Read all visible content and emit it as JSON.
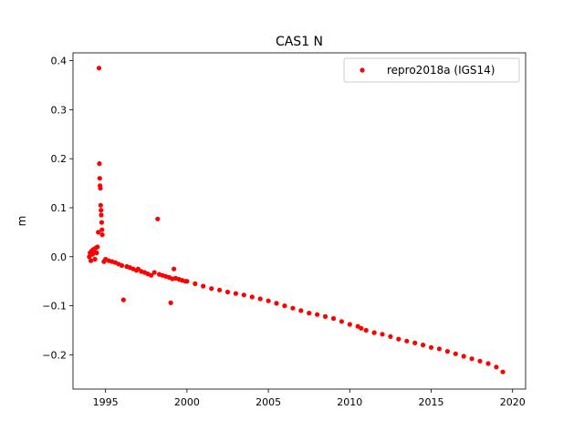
{
  "chart_data": {
    "type": "scatter",
    "title": "CAS1 N",
    "xlabel": "",
    "ylabel": "m",
    "xlim": [
      1993.0,
      2020.8
    ],
    "ylim": [
      -0.27,
      0.416
    ],
    "xticks": [
      1995,
      2000,
      2005,
      2010,
      2015,
      2020
    ],
    "xtick_labels": [
      "1995",
      "2000",
      "2005",
      "2010",
      "2015",
      "2020"
    ],
    "yticks": [
      -0.2,
      -0.1,
      0.0,
      0.1,
      0.2,
      0.3,
      0.4
    ],
    "ytick_labels": [
      "−0.2",
      "−0.1",
      "0.0",
      "0.1",
      "0.2",
      "0.3",
      "0.4"
    ],
    "grid": false,
    "legend_position": "top-right",
    "series": [
      {
        "name": "repro2018a (IGS14)",
        "color": "#ff0000",
        "marker": "circle",
        "x": [
          1994.0,
          1994.05,
          1994.1,
          1994.15,
          1994.2,
          1994.25,
          1994.3,
          1994.35,
          1994.4,
          1994.45,
          1994.5,
          1994.55,
          1994.6,
          1994.62,
          1994.64,
          1994.66,
          1994.68,
          1994.7,
          1994.72,
          1994.74,
          1994.76,
          1994.78,
          1994.8,
          1994.9,
          1995.0,
          1995.2,
          1995.4,
          1995.6,
          1995.8,
          1996.0,
          1996.1,
          1996.3,
          1996.5,
          1996.7,
          1996.9,
          1997.0,
          1997.2,
          1997.4,
          1997.6,
          1997.8,
          1998.0,
          1998.2,
          1998.3,
          1998.5,
          1998.7,
          1998.9,
          1999.0,
          1999.1,
          1999.2,
          1999.3,
          1999.5,
          1999.7,
          1999.9,
          2000.0,
          2000.5,
          2001.0,
          2001.5,
          2002.0,
          2002.5,
          2003.0,
          2003.5,
          2004.0,
          2004.5,
          2005.0,
          2005.5,
          2006.0,
          2006.5,
          2007.0,
          2007.5,
          2008.0,
          2008.5,
          2009.0,
          2009.5,
          2010.0,
          2010.5,
          2010.7,
          2011.0,
          2011.5,
          2012.0,
          2012.5,
          2013.0,
          2013.5,
          2014.0,
          2014.5,
          2015.0,
          2015.5,
          2016.0,
          2016.5,
          2017.0,
          2017.5,
          2018.0,
          2018.5,
          2019.0,
          2019.4
        ],
        "y": [
          0.0,
          0.008,
          -0.008,
          0.012,
          0.005,
          0.015,
          0.01,
          -0.005,
          0.018,
          0.008,
          0.02,
          0.05,
          0.385,
          0.19,
          0.16,
          0.145,
          0.14,
          0.105,
          0.095,
          0.085,
          0.07,
          0.055,
          0.045,
          -0.01,
          -0.005,
          -0.008,
          -0.01,
          -0.012,
          -0.015,
          -0.018,
          -0.088,
          -0.02,
          -0.022,
          -0.025,
          -0.028,
          -0.025,
          -0.03,
          -0.032,
          -0.035,
          -0.038,
          -0.032,
          0.077,
          -0.036,
          -0.038,
          -0.04,
          -0.042,
          -0.094,
          -0.045,
          -0.025,
          -0.044,
          -0.046,
          -0.048,
          -0.05,
          -0.05,
          -0.055,
          -0.06,
          -0.065,
          -0.068,
          -0.072,
          -0.075,
          -0.078,
          -0.082,
          -0.086,
          -0.09,
          -0.095,
          -0.1,
          -0.105,
          -0.11,
          -0.115,
          -0.118,
          -0.122,
          -0.126,
          -0.132,
          -0.138,
          -0.142,
          -0.146,
          -0.15,
          -0.155,
          -0.158,
          -0.163,
          -0.168,
          -0.172,
          -0.176,
          -0.18,
          -0.185,
          -0.188,
          -0.193,
          -0.198,
          -0.203,
          -0.208,
          -0.213,
          -0.218,
          -0.225,
          -0.235
        ]
      }
    ]
  }
}
